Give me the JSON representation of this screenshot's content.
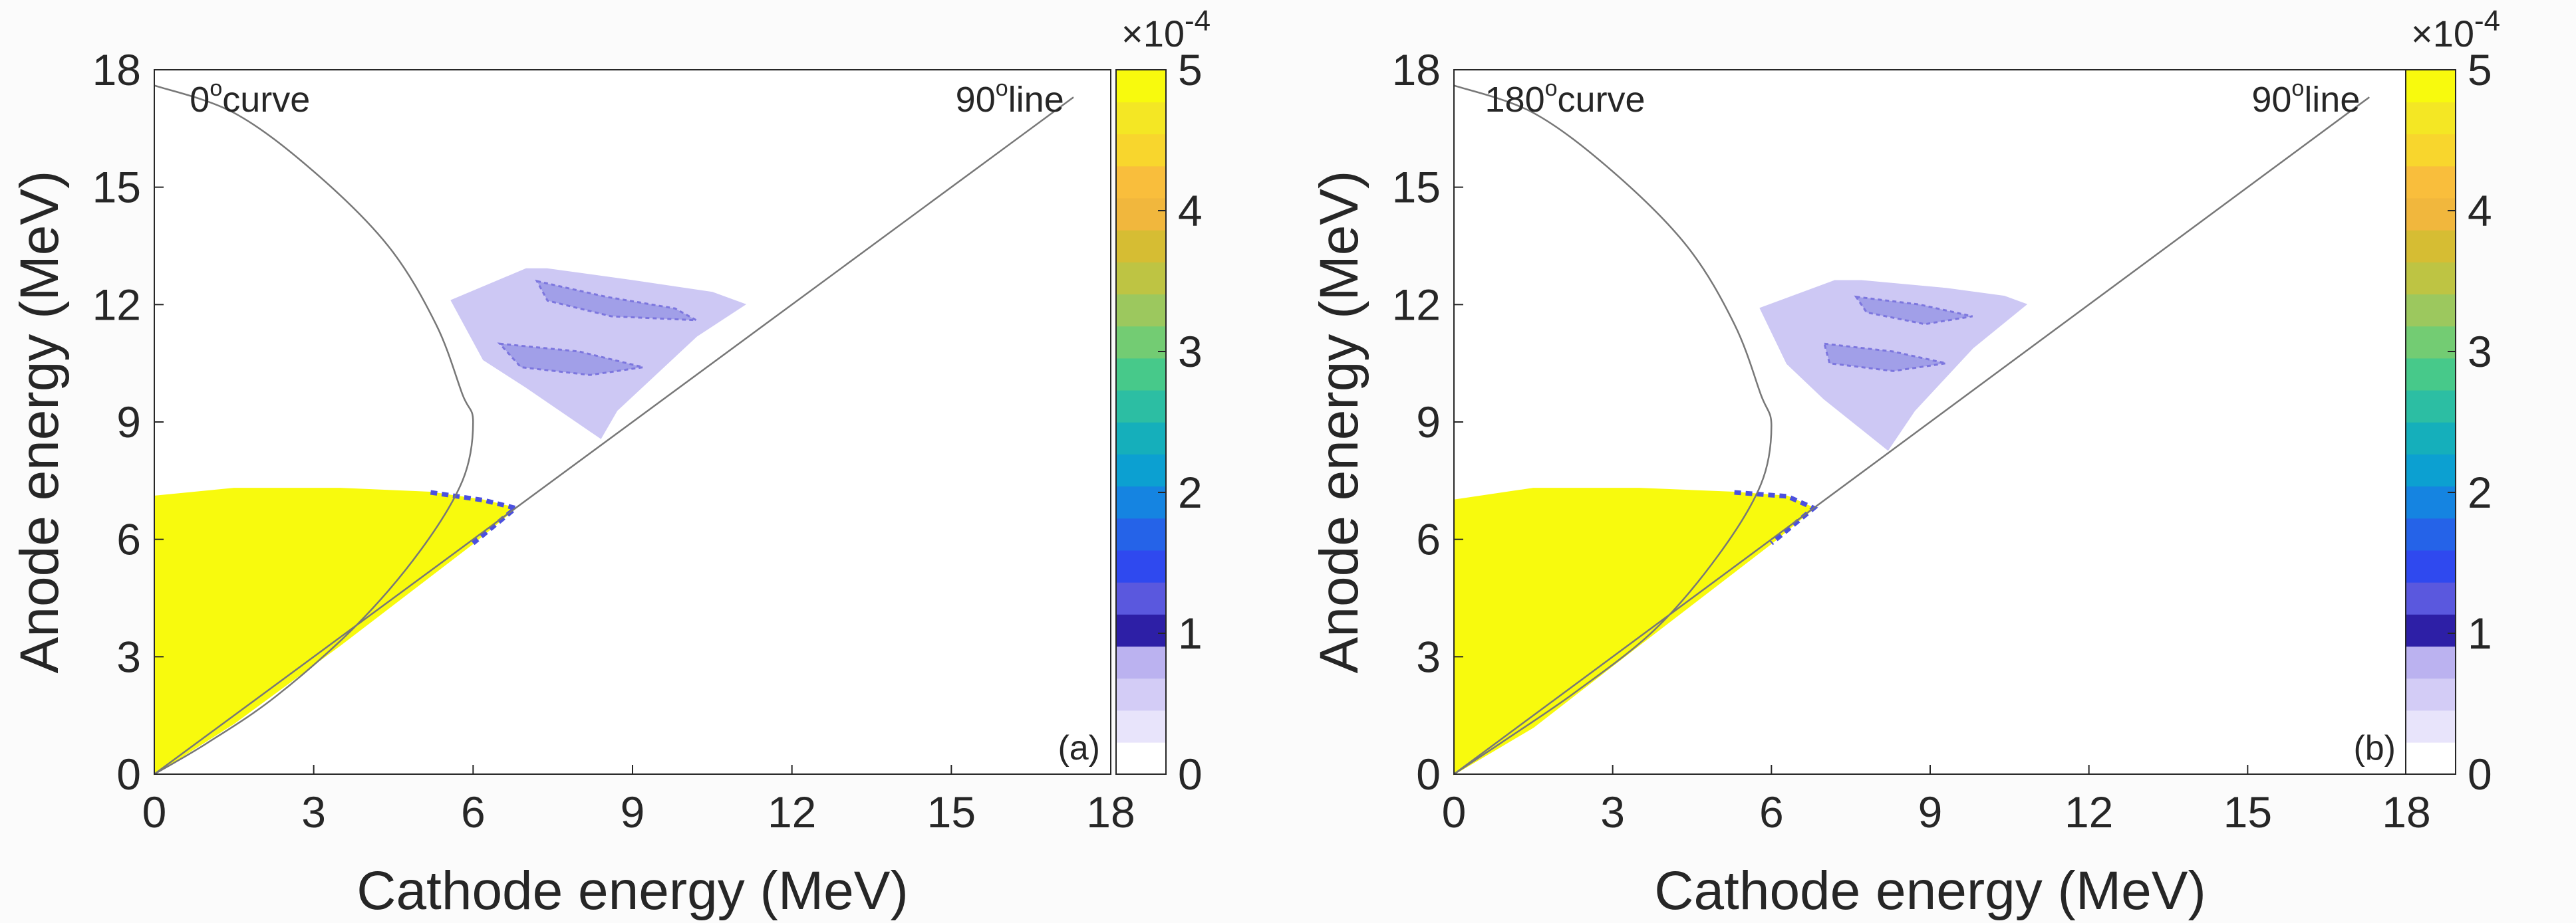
{
  "chart_data": [
    {
      "type": "heatmap",
      "panel_label": "(a)",
      "xlabel": "Cathode energy (MeV)",
      "ylabel": "Anode energy (MeV)",
      "xlim": [
        0,
        18
      ],
      "ylim": [
        0,
        18
      ],
      "xticks": [
        0,
        3,
        6,
        9,
        12,
        15,
        18
      ],
      "yticks": [
        0,
        3,
        6,
        9,
        12,
        15,
        18
      ],
      "colorbar": {
        "range": [
          0,
          5
        ],
        "ticks": [
          0,
          1,
          2,
          3,
          4,
          5
        ],
        "multiplier": "×10",
        "exponent": "-4"
      },
      "annotations": [
        {
          "text": "0",
          "superscript": "o",
          "suffix": "curve",
          "x": 1.8,
          "y": 17.1
        },
        {
          "text": "90",
          "superscript": "o",
          "suffix": "line",
          "x": 16.1,
          "y": 17.1
        }
      ],
      "reference_curve": {
        "name": "0° curve",
        "points": [
          [
            0,
            17.6
          ],
          [
            1.5,
            16.9
          ],
          [
            3.0,
            15.4
          ],
          [
            4.4,
            13.5
          ],
          [
            5.3,
            11.5
          ],
          [
            5.8,
            9.7
          ],
          [
            6.0,
            9.0
          ],
          [
            5.8,
            7.5
          ],
          [
            5.0,
            5.7
          ],
          [
            3.8,
            3.8
          ],
          [
            2.3,
            2.0
          ],
          [
            1.0,
            0.8
          ],
          [
            0,
            0
          ]
        ]
      },
      "reference_line": {
        "name": "90° line",
        "points": [
          [
            0,
            0
          ],
          [
            17.3,
            17.3
          ]
        ]
      },
      "yellow_region": [
        [
          0,
          0
        ],
        [
          0,
          7.1
        ],
        [
          1.5,
          7.3
        ],
        [
          3.5,
          7.3
        ],
        [
          5.2,
          7.2
        ],
        [
          6.2,
          7.0
        ],
        [
          6.8,
          6.8
        ],
        [
          6.0,
          5.9
        ],
        [
          3.5,
          3.3
        ],
        [
          1.5,
          1.3
        ]
      ],
      "lavender_region": [
        [
          7.4,
          12.9
        ],
        [
          9.0,
          12.6
        ],
        [
          10.5,
          12.3
        ],
        [
          11.1,
          12.0
        ],
        [
          10.2,
          11.2
        ],
        [
          8.7,
          9.3
        ],
        [
          8.4,
          8.6
        ],
        [
          7.0,
          9.9
        ],
        [
          6.2,
          10.6
        ],
        [
          5.6,
          12.1
        ],
        [
          7.0,
          12.9
        ]
      ],
      "density_bands": [
        {
          "points": [
            [
              7.2,
              12.6
            ],
            [
              8.5,
              12.2
            ],
            [
              9.8,
              11.9
            ],
            [
              10.2,
              11.6
            ],
            [
              8.6,
              11.7
            ],
            [
              7.4,
              12.1
            ]
          ]
        },
        {
          "points": [
            [
              6.5,
              11.0
            ],
            [
              8.0,
              10.8
            ],
            [
              9.2,
              10.4
            ],
            [
              8.2,
              10.2
            ],
            [
              6.9,
              10.4
            ]
          ]
        }
      ]
    },
    {
      "type": "heatmap",
      "panel_label": "(b)",
      "xlabel": "Cathode energy (MeV)",
      "ylabel": "Anode energy (MeV)",
      "xlim": [
        0,
        18
      ],
      "ylim": [
        0,
        18
      ],
      "xticks": [
        0,
        3,
        6,
        9,
        12,
        15,
        18
      ],
      "yticks": [
        0,
        3,
        6,
        9,
        12,
        15,
        18
      ],
      "colorbar": {
        "range": [
          0,
          5
        ],
        "ticks": [
          0,
          1,
          2,
          3,
          4,
          5
        ],
        "multiplier": "×10",
        "exponent": "-4"
      },
      "annotations": [
        {
          "text": "180",
          "superscript": "o",
          "suffix": "curve",
          "x": 2.1,
          "y": 17.1
        },
        {
          "text": "90",
          "superscript": "o",
          "suffix": "line",
          "x": 16.1,
          "y": 17.1
        }
      ],
      "reference_curve": {
        "name": "180° curve",
        "points": [
          [
            0,
            17.6
          ],
          [
            1.5,
            16.9
          ],
          [
            3.0,
            15.4
          ],
          [
            4.4,
            13.5
          ],
          [
            5.3,
            11.5
          ],
          [
            5.8,
            9.7
          ],
          [
            6.0,
            8.9
          ],
          [
            5.8,
            7.4
          ],
          [
            5.0,
            5.6
          ],
          [
            3.8,
            3.7
          ],
          [
            2.3,
            2.1
          ],
          [
            1.0,
            0.9
          ],
          [
            0,
            0
          ]
        ]
      },
      "reference_line": {
        "name": "90° line",
        "points": [
          [
            0,
            0
          ],
          [
            17.3,
            17.3
          ]
        ]
      },
      "yellow_region": [
        [
          0,
          0
        ],
        [
          0,
          7.0
        ],
        [
          1.5,
          7.3
        ],
        [
          3.5,
          7.3
        ],
        [
          5.3,
          7.2
        ],
        [
          6.3,
          7.1
        ],
        [
          6.8,
          6.8
        ],
        [
          6.0,
          5.9
        ],
        [
          3.5,
          3.3
        ],
        [
          1.5,
          1.2
        ]
      ],
      "lavender_region": [
        [
          7.7,
          12.6
        ],
        [
          9.3,
          12.4
        ],
        [
          10.4,
          12.2
        ],
        [
          10.8,
          12.0
        ],
        [
          9.8,
          10.9
        ],
        [
          8.7,
          9.3
        ],
        [
          8.2,
          8.3
        ],
        [
          7.0,
          9.6
        ],
        [
          6.3,
          10.5
        ],
        [
          5.8,
          11.9
        ],
        [
          7.2,
          12.6
        ]
      ],
      "density_bands": [
        {
          "points": [
            [
              7.6,
              12.2
            ],
            [
              8.8,
              12.0
            ],
            [
              9.8,
              11.7
            ],
            [
              8.9,
              11.5
            ],
            [
              7.8,
              11.8
            ]
          ]
        },
        {
          "points": [
            [
              7.0,
              11.0
            ],
            [
              8.3,
              10.8
            ],
            [
              9.3,
              10.5
            ],
            [
              8.3,
              10.3
            ],
            [
              7.1,
              10.5
            ]
          ]
        }
      ]
    }
  ],
  "colors": {
    "yellow": "#f8fa0d",
    "lavender": "#cdc8f4",
    "band": "#9a98e6",
    "band_dark": "#6e68db",
    "edge_blue": "#4b50df",
    "line": "#777777",
    "axis": "#262626",
    "background": "#fbfbfb",
    "colorbar": [
      "#ffffff",
      "#e8e4fb",
      "#d3ccf6",
      "#bbb2f0",
      "#2d1fa6",
      "#5a58de",
      "#2f49ef",
      "#2563e8",
      "#1584e1",
      "#0ca0d1",
      "#15afbb",
      "#2cbea3",
      "#47c98a",
      "#73cc73",
      "#9cc85e",
      "#bec443",
      "#d6bd33",
      "#f1b73d",
      "#f9be3c",
      "#f8d62d",
      "#f4e724",
      "#f8fa0d"
    ]
  }
}
